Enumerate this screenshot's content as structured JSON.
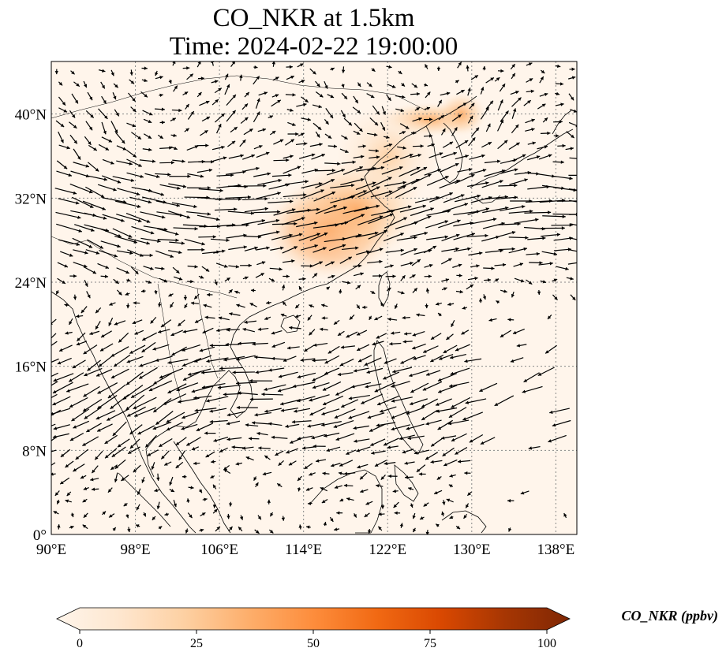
{
  "title": {
    "line1": "CO_NKR at 1.5km",
    "line2": "Time: 2024-02-22 19:00:00"
  },
  "map": {
    "lon_range": [
      90,
      140
    ],
    "lat_range": [
      0,
      45
    ],
    "lon_ticks": [
      {
        "value": 90,
        "label": "90°E"
      },
      {
        "value": 98,
        "label": "98°E"
      },
      {
        "value": 106,
        "label": "106°E"
      },
      {
        "value": 114,
        "label": "114°E"
      },
      {
        "value": 122,
        "label": "122°E"
      },
      {
        "value": 130,
        "label": "130°E"
      },
      {
        "value": 138,
        "label": "138°E"
      }
    ],
    "lat_ticks": [
      {
        "value": 0,
        "label": "0°"
      },
      {
        "value": 8,
        "label": "8°N"
      },
      {
        "value": 16,
        "label": "16°N"
      },
      {
        "value": 24,
        "label": "24°N"
      },
      {
        "value": 32,
        "label": "32°N"
      },
      {
        "value": 40,
        "label": "40°N"
      }
    ],
    "plume_regions": [
      {
        "lon": 116.5,
        "lat": 29,
        "rlon": 4,
        "rlat": 3,
        "level": 28
      },
      {
        "lon": 119,
        "lat": 31,
        "rlon": 4,
        "rlat": 3,
        "level": 18
      },
      {
        "lon": 126,
        "lat": 39.5,
        "rlon": 3,
        "rlat": 1,
        "level": 12
      },
      {
        "lon": 129,
        "lat": 40,
        "rlon": 1.5,
        "rlat": 1.3,
        "level": 16
      },
      {
        "lon": 122,
        "lat": 36,
        "rlon": 3,
        "rlat": 3,
        "level": 6
      }
    ],
    "colors": {
      "background": "#fff5eb",
      "grid": "#888888",
      "coast": "#000000"
    }
  },
  "colorbar": {
    "label": "CO_NKR (ppbv)",
    "min": 0,
    "max": 100,
    "ticks": [
      {
        "value": 0,
        "label": "0"
      },
      {
        "value": 25,
        "label": "25"
      },
      {
        "value": 50,
        "label": "50"
      },
      {
        "value": 75,
        "label": "75"
      },
      {
        "value": 100,
        "label": "100"
      }
    ],
    "stops": [
      "#fff5eb",
      "#fee6ce",
      "#fdd0a2",
      "#fdae6b",
      "#fd8d3c",
      "#f16913",
      "#d94801",
      "#a63603",
      "#7f2704"
    ]
  }
}
